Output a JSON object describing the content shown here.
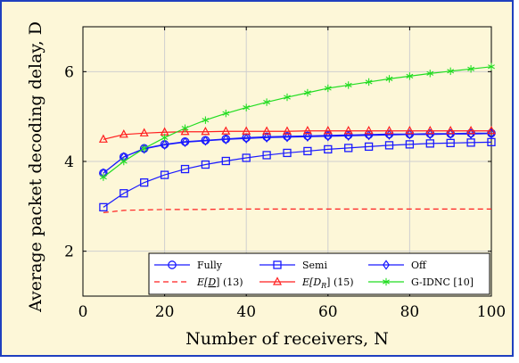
{
  "colors": {
    "background": "#fdf7d8",
    "frame": "#1f3fbf",
    "grid": "#cfcfcf",
    "blue": "#1a1aff",
    "red": "#ff1f1f",
    "green": "#22dd22"
  },
  "chart_data": {
    "type": "line",
    "xlabel": "Number of receivers, N",
    "ylabel": "Average packet decoding delay, D",
    "xlim": [
      0,
      100
    ],
    "ylim": [
      1,
      7
    ],
    "xticks": [
      0,
      20,
      40,
      60,
      80,
      100
    ],
    "yticks": [
      2,
      4,
      6
    ],
    "grid": true,
    "legend_position": "bottom-right",
    "series": [
      {
        "name": "Fully",
        "marker": "circle",
        "color": "#1a1aff",
        "dash": "solid",
        "x": [
          5,
          10,
          15,
          20,
          25,
          30,
          35,
          40,
          45,
          50,
          55,
          60,
          65,
          70,
          75,
          80,
          85,
          90,
          95,
          100
        ],
        "y": [
          3.74,
          4.1,
          4.29,
          4.38,
          4.44,
          4.47,
          4.5,
          4.53,
          4.55,
          4.56,
          4.57,
          4.58,
          4.59,
          4.6,
          4.61,
          4.61,
          4.62,
          4.62,
          4.63,
          4.63
        ]
      },
      {
        "name": "Semi",
        "marker": "square",
        "color": "#1a1aff",
        "dash": "solid",
        "x": [
          5,
          10,
          15,
          20,
          25,
          30,
          35,
          40,
          45,
          50,
          55,
          60,
          65,
          70,
          75,
          80,
          85,
          90,
          95,
          100
        ],
        "y": [
          2.98,
          3.29,
          3.53,
          3.7,
          3.83,
          3.93,
          4.01,
          4.08,
          4.14,
          4.19,
          4.23,
          4.27,
          4.3,
          4.33,
          4.36,
          4.38,
          4.4,
          4.41,
          4.42,
          4.43
        ]
      },
      {
        "name": "Off",
        "marker": "diamond",
        "color": "#1a1aff",
        "dash": "solid",
        "x": [
          5,
          10,
          15,
          20,
          25,
          30,
          35,
          40,
          45,
          50,
          55,
          60,
          65,
          70,
          75,
          80,
          85,
          90,
          95,
          100
        ],
        "y": [
          3.74,
          4.1,
          4.28,
          4.37,
          4.43,
          4.46,
          4.49,
          4.51,
          4.53,
          4.54,
          4.55,
          4.56,
          4.57,
          4.58,
          4.59,
          4.6,
          4.6,
          4.61,
          4.61,
          4.62
        ]
      },
      {
        "name": "E[D] (13)",
        "marker": "none",
        "color": "#ff1f1f",
        "dash": "dashed",
        "x": [
          5,
          10,
          15,
          20,
          25,
          30,
          35,
          40,
          45,
          50,
          55,
          60,
          65,
          70,
          75,
          80,
          85,
          90,
          95,
          100
        ],
        "y": [
          2.86,
          2.91,
          2.92,
          2.93,
          2.93,
          2.93,
          2.94,
          2.94,
          2.94,
          2.94,
          2.94,
          2.94,
          2.94,
          2.94,
          2.94,
          2.94,
          2.94,
          2.94,
          2.94,
          2.94
        ]
      },
      {
        "name": "E[D_R] (15)",
        "marker": "triangle",
        "color": "#ff1f1f",
        "dash": "solid",
        "x": [
          5,
          10,
          15,
          20,
          25,
          30,
          35,
          40,
          45,
          50,
          55,
          60,
          65,
          70,
          75,
          80,
          85,
          90,
          95,
          100
        ],
        "y": [
          4.49,
          4.6,
          4.63,
          4.65,
          4.66,
          4.66,
          4.67,
          4.67,
          4.67,
          4.67,
          4.68,
          4.68,
          4.68,
          4.68,
          4.68,
          4.68,
          4.68,
          4.68,
          4.68,
          4.68
        ]
      },
      {
        "name": "G-IDNC [10]",
        "marker": "star",
        "color": "#22dd22",
        "dash": "solid",
        "x": [
          5,
          10,
          15,
          20,
          25,
          30,
          35,
          40,
          45,
          50,
          55,
          60,
          65,
          70,
          75,
          80,
          85,
          90,
          95,
          100
        ],
        "y": [
          3.65,
          4.0,
          4.29,
          4.53,
          4.74,
          4.92,
          5.07,
          5.2,
          5.32,
          5.43,
          5.53,
          5.63,
          5.7,
          5.77,
          5.84,
          5.9,
          5.96,
          6.01,
          6.06,
          6.11
        ]
      }
    ]
  },
  "legend": {
    "row1": [
      {
        "series": 0,
        "label": "Fully"
      },
      {
        "series": 1,
        "label": "Semi"
      },
      {
        "series": 2,
        "label": "Off"
      }
    ],
    "row2": [
      {
        "series": 3,
        "label_main": "E[",
        "label_sym": "D",
        "label_rest": "]  (13)"
      },
      {
        "series": 4,
        "label_main": "E[D",
        "label_sub": "R",
        "label_rest": "]  (15)"
      },
      {
        "series": 5,
        "label": "G-IDNC [10]"
      }
    ]
  }
}
